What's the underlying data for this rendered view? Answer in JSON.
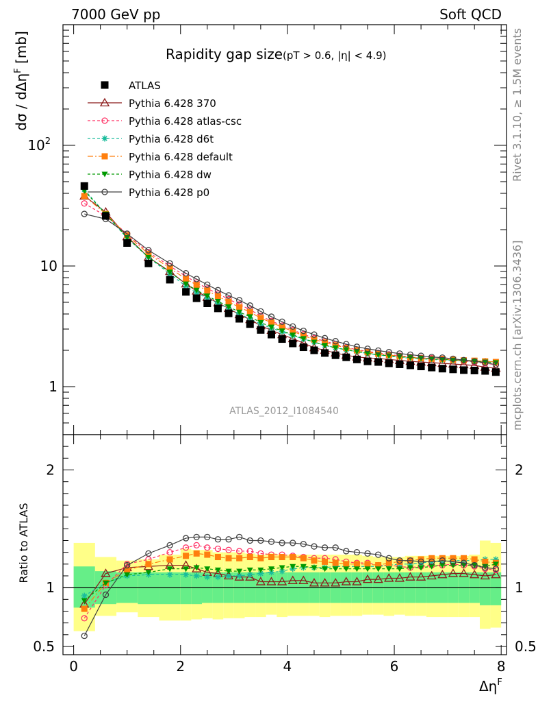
{
  "header": {
    "left": "7000 GeV pp",
    "right": "Soft QCD"
  },
  "title": "Rapidity gap size",
  "title_sub": "(pT > 0.6, |η| < 4.9)",
  "side_labels": {
    "rivet": "Rivet 3.1.10, ≥ 1.5M events",
    "mcplots": "mcplots.cern.ch [arXiv:1306.3436]"
  },
  "analysis_id": "ATLAS_2012_I1084540",
  "colors": {
    "ATLAS": "#000000",
    "p370": "#8b1a1a",
    "atlascsc": "#ff3366",
    "d6t": "#1abc9c",
    "default": "#ff7f0e",
    "dw": "#009900",
    "p0": "#404040",
    "band_inner": "#66ee88",
    "band_outer": "#ffff88"
  },
  "chart_data": [
    {
      "type": "line",
      "panel": "main",
      "ylabel": "dσ / dΔη^F [mb]",
      "yscale": "log",
      "ylim": [
        0.4,
        1000
      ],
      "xlim": [
        -0.2,
        8.1
      ],
      "yticklabels": [
        "1",
        "10",
        "10^2"
      ],
      "legend": [
        "ATLAS",
        "Pythia 6.428 370",
        "Pythia 6.428 atlas-csc",
        "Pythia 6.428 d6t",
        "Pythia 6.428 default",
        "Pythia 6.428 dw",
        "Pythia 6.428 p0"
      ],
      "x": [
        0.2,
        0.6,
        1.0,
        1.4,
        1.8,
        2.1,
        2.3,
        2.5,
        2.7,
        2.9,
        3.1,
        3.3,
        3.5,
        3.7,
        3.9,
        4.1,
        4.3,
        4.5,
        4.7,
        4.9,
        5.1,
        5.3,
        5.5,
        5.7,
        5.9,
        6.1,
        6.3,
        6.5,
        6.7,
        6.9,
        7.1,
        7.3,
        7.5,
        7.7,
        7.9
      ],
      "series": [
        {
          "name": "ATLAS",
          "values": [
            46,
            26,
            15.5,
            10.5,
            7.7,
            6.1,
            5.4,
            4.9,
            4.45,
            4.05,
            3.65,
            3.3,
            2.95,
            2.7,
            2.48,
            2.28,
            2.12,
            2.0,
            1.9,
            1.82,
            1.75,
            1.68,
            1.62,
            1.6,
            1.56,
            1.53,
            1.5,
            1.47,
            1.44,
            1.41,
            1.39,
            1.37,
            1.36,
            1.35,
            1.32
          ]
        },
        {
          "name": "Pythia 6.428 370",
          "values": [
            38,
            28,
            17.5,
            11.8,
            9.0,
            7.1,
            6.2,
            5.5,
            4.95,
            4.45,
            3.95,
            3.6,
            3.2,
            2.93,
            2.7,
            2.5,
            2.3,
            2.1,
            2.0,
            1.9,
            1.82,
            1.76,
            1.73,
            1.71,
            1.68,
            1.65,
            1.62,
            1.6,
            1.58,
            1.56,
            1.54,
            1.52,
            1.5,
            1.45,
            1.42
          ]
        },
        {
          "name": "Pythia 6.428 atlas-csc",
          "values": [
            33,
            26,
            18.5,
            13,
            10.0,
            8.2,
            7.3,
            6.5,
            5.9,
            5.3,
            4.8,
            4.35,
            3.85,
            3.5,
            3.2,
            2.95,
            2.72,
            2.52,
            2.38,
            2.25,
            2.12,
            2.02,
            1.96,
            1.9,
            1.85,
            1.8,
            1.76,
            1.73,
            1.72,
            1.7,
            1.67,
            1.63,
            1.6,
            1.56,
            1.52
          ]
        },
        {
          "name": "Pythia 6.428 d6t",
          "values": [
            43,
            27,
            17.0,
            11.8,
            8.6,
            6.8,
            6.0,
            5.4,
            4.9,
            4.45,
            4.0,
            3.65,
            3.3,
            3.05,
            2.85,
            2.65,
            2.48,
            2.34,
            2.2,
            2.1,
            2.02,
            1.95,
            1.88,
            1.83,
            1.79,
            1.75,
            1.72,
            1.7,
            1.68,
            1.66,
            1.65,
            1.64,
            1.63,
            1.63,
            1.6
          ]
        },
        {
          "name": "Pythia 6.428 default",
          "values": [
            38,
            27,
            18,
            12.6,
            9.6,
            7.8,
            6.95,
            6.25,
            5.6,
            5.05,
            4.55,
            4.15,
            3.7,
            3.4,
            3.12,
            2.87,
            2.65,
            2.46,
            2.32,
            2.2,
            2.09,
            2.0,
            1.93,
            1.87,
            1.83,
            1.78,
            1.75,
            1.72,
            1.7,
            1.69,
            1.67,
            1.65,
            1.64,
            1.62,
            1.6
          ]
        },
        {
          "name": "Pythia 6.428 dw",
          "values": [
            42,
            27,
            17.2,
            11.8,
            8.9,
            7.1,
            6.3,
            5.65,
            5.1,
            4.6,
            4.15,
            3.8,
            3.4,
            3.12,
            2.9,
            2.68,
            2.5,
            2.34,
            2.2,
            2.1,
            2.02,
            1.95,
            1.89,
            1.84,
            1.8,
            1.77,
            1.74,
            1.72,
            1.7,
            1.68,
            1.66,
            1.64,
            1.62,
            1.6,
            1.58
          ]
        },
        {
          "name": "Pythia 6.428 p0",
          "values": [
            27,
            24.5,
            18.5,
            13.5,
            10.5,
            8.7,
            7.8,
            7.0,
            6.3,
            5.7,
            5.2,
            4.7,
            4.2,
            3.8,
            3.45,
            3.15,
            2.9,
            2.7,
            2.52,
            2.38,
            2.25,
            2.14,
            2.06,
            1.99,
            1.93,
            1.88,
            1.84,
            1.8,
            1.76,
            1.74,
            1.7,
            1.66,
            1.62,
            1.58,
            1.52
          ]
        }
      ]
    },
    {
      "type": "line",
      "panel": "ratio",
      "ylabel": "Ratio to ATLAS",
      "xlabel": "Δη^F",
      "ylim": [
        0.43,
        2.3
      ],
      "xlim": [
        -0.2,
        8.1
      ],
      "yticks": [
        0.5,
        1,
        2
      ],
      "xticks": [
        0,
        2,
        4,
        6,
        8
      ],
      "bin_edges": [
        0.0,
        0.4,
        0.8,
        1.2,
        1.6,
        2.0,
        2.2,
        2.4,
        2.6,
        2.8,
        3.0,
        3.2,
        3.4,
        3.6,
        3.8,
        4.0,
        4.2,
        4.4,
        4.6,
        4.8,
        5.0,
        5.2,
        5.4,
        5.6,
        5.8,
        6.0,
        6.2,
        6.4,
        6.6,
        6.8,
        7.0,
        7.2,
        7.4,
        7.6,
        7.8,
        8.0
      ],
      "bands": {
        "inner_low": [
          0.83,
          0.86,
          0.87,
          0.86,
          0.86,
          0.86,
          0.86,
          0.87,
          0.87,
          0.87,
          0.87,
          0.87,
          0.87,
          0.87,
          0.87,
          0.87,
          0.87,
          0.87,
          0.87,
          0.87,
          0.87,
          0.87,
          0.87,
          0.87,
          0.87,
          0.87,
          0.87,
          0.87,
          0.87,
          0.87,
          0.87,
          0.87,
          0.87,
          0.85,
          0.85
        ],
        "inner_high": [
          1.18,
          1.14,
          1.13,
          1.13,
          1.13,
          1.13,
          1.13,
          1.13,
          1.13,
          1.13,
          1.13,
          1.13,
          1.13,
          1.13,
          1.13,
          1.13,
          1.13,
          1.13,
          1.13,
          1.13,
          1.13,
          1.13,
          1.13,
          1.13,
          1.13,
          1.13,
          1.13,
          1.13,
          1.13,
          1.13,
          1.13,
          1.13,
          1.13,
          1.13,
          1.13
        ],
        "outer_low": [
          0.63,
          0.76,
          0.79,
          0.75,
          0.72,
          0.72,
          0.73,
          0.74,
          0.73,
          0.74,
          0.74,
          0.75,
          0.75,
          0.77,
          0.75,
          0.76,
          0.76,
          0.76,
          0.75,
          0.76,
          0.76,
          0.76,
          0.77,
          0.77,
          0.76,
          0.77,
          0.76,
          0.76,
          0.75,
          0.75,
          0.75,
          0.75,
          0.75,
          0.65,
          0.66
        ],
        "outer_high": [
          1.38,
          1.26,
          1.23,
          1.24,
          1.28,
          1.33,
          1.32,
          1.32,
          1.3,
          1.3,
          1.3,
          1.29,
          1.28,
          1.29,
          1.28,
          1.28,
          1.28,
          1.28,
          1.28,
          1.28,
          1.28,
          1.28,
          1.27,
          1.26,
          1.26,
          1.26,
          1.27,
          1.27,
          1.27,
          1.27,
          1.27,
          1.27,
          1.28,
          1.4,
          1.38
        ]
      },
      "series": [
        {
          "name": "Pythia 6.428 370",
          "values": [
            0.86,
            1.12,
            1.17,
            1.18,
            1.19,
            1.19,
            1.16,
            1.13,
            1.12,
            1.1,
            1.09,
            1.09,
            1.05,
            1.05,
            1.05,
            1.06,
            1.06,
            1.04,
            1.04,
            1.04,
            1.05,
            1.05,
            1.07,
            1.07,
            1.08,
            1.08,
            1.09,
            1.09,
            1.1,
            1.11,
            1.12,
            1.12,
            1.11,
            1.1,
            1.11
          ]
        },
        {
          "name": "Pythia 6.428 atlas-csc",
          "values": [
            0.74,
            1.02,
            1.2,
            1.24,
            1.3,
            1.34,
            1.36,
            1.34,
            1.33,
            1.32,
            1.31,
            1.31,
            1.29,
            1.28,
            1.28,
            1.27,
            1.26,
            1.25,
            1.25,
            1.24,
            1.22,
            1.21,
            1.21,
            1.19,
            1.19,
            1.18,
            1.17,
            1.18,
            1.19,
            1.19,
            1.2,
            1.19,
            1.18,
            1.16,
            1.15
          ]
        },
        {
          "name": "Pythia 6.428 d6t",
          "values": [
            0.93,
            1.04,
            1.1,
            1.11,
            1.11,
            1.11,
            1.1,
            1.09,
            1.09,
            1.1,
            1.1,
            1.11,
            1.12,
            1.13,
            1.14,
            1.16,
            1.17,
            1.17,
            1.17,
            1.18,
            1.18,
            1.18,
            1.18,
            1.18,
            1.19,
            1.2,
            1.2,
            1.21,
            1.22,
            1.22,
            1.23,
            1.23,
            1.23,
            1.24,
            1.24
          ]
        },
        {
          "name": "Pythia 6.428 default",
          "values": [
            0.82,
            1.04,
            1.15,
            1.2,
            1.24,
            1.27,
            1.29,
            1.28,
            1.26,
            1.25,
            1.25,
            1.26,
            1.25,
            1.26,
            1.26,
            1.26,
            1.25,
            1.23,
            1.22,
            1.21,
            1.2,
            1.2,
            1.2,
            1.19,
            1.21,
            1.22,
            1.23,
            1.24,
            1.25,
            1.25,
            1.25,
            1.25,
            1.24,
            1.22,
            1.21
          ]
        },
        {
          "name": "Pythia 6.428 dw",
          "values": [
            0.89,
            1.04,
            1.11,
            1.13,
            1.16,
            1.16,
            1.17,
            1.16,
            1.15,
            1.14,
            1.14,
            1.15,
            1.15,
            1.16,
            1.17,
            1.18,
            1.18,
            1.17,
            1.16,
            1.16,
            1.16,
            1.16,
            1.16,
            1.16,
            1.16,
            1.16,
            1.17,
            1.17,
            1.18,
            1.19,
            1.19,
            1.19,
            1.19,
            1.18,
            1.2
          ]
        },
        {
          "name": "Pythia 6.428 p0",
          "values": [
            0.59,
            0.94,
            1.19,
            1.29,
            1.36,
            1.42,
            1.43,
            1.43,
            1.41,
            1.41,
            1.43,
            1.4,
            1.4,
            1.39,
            1.38,
            1.38,
            1.37,
            1.35,
            1.34,
            1.34,
            1.31,
            1.3,
            1.29,
            1.28,
            1.25,
            1.23,
            1.23,
            1.22,
            1.22,
            1.23,
            1.22,
            1.21,
            1.19,
            1.17,
            1.16
          ]
        }
      ]
    }
  ]
}
